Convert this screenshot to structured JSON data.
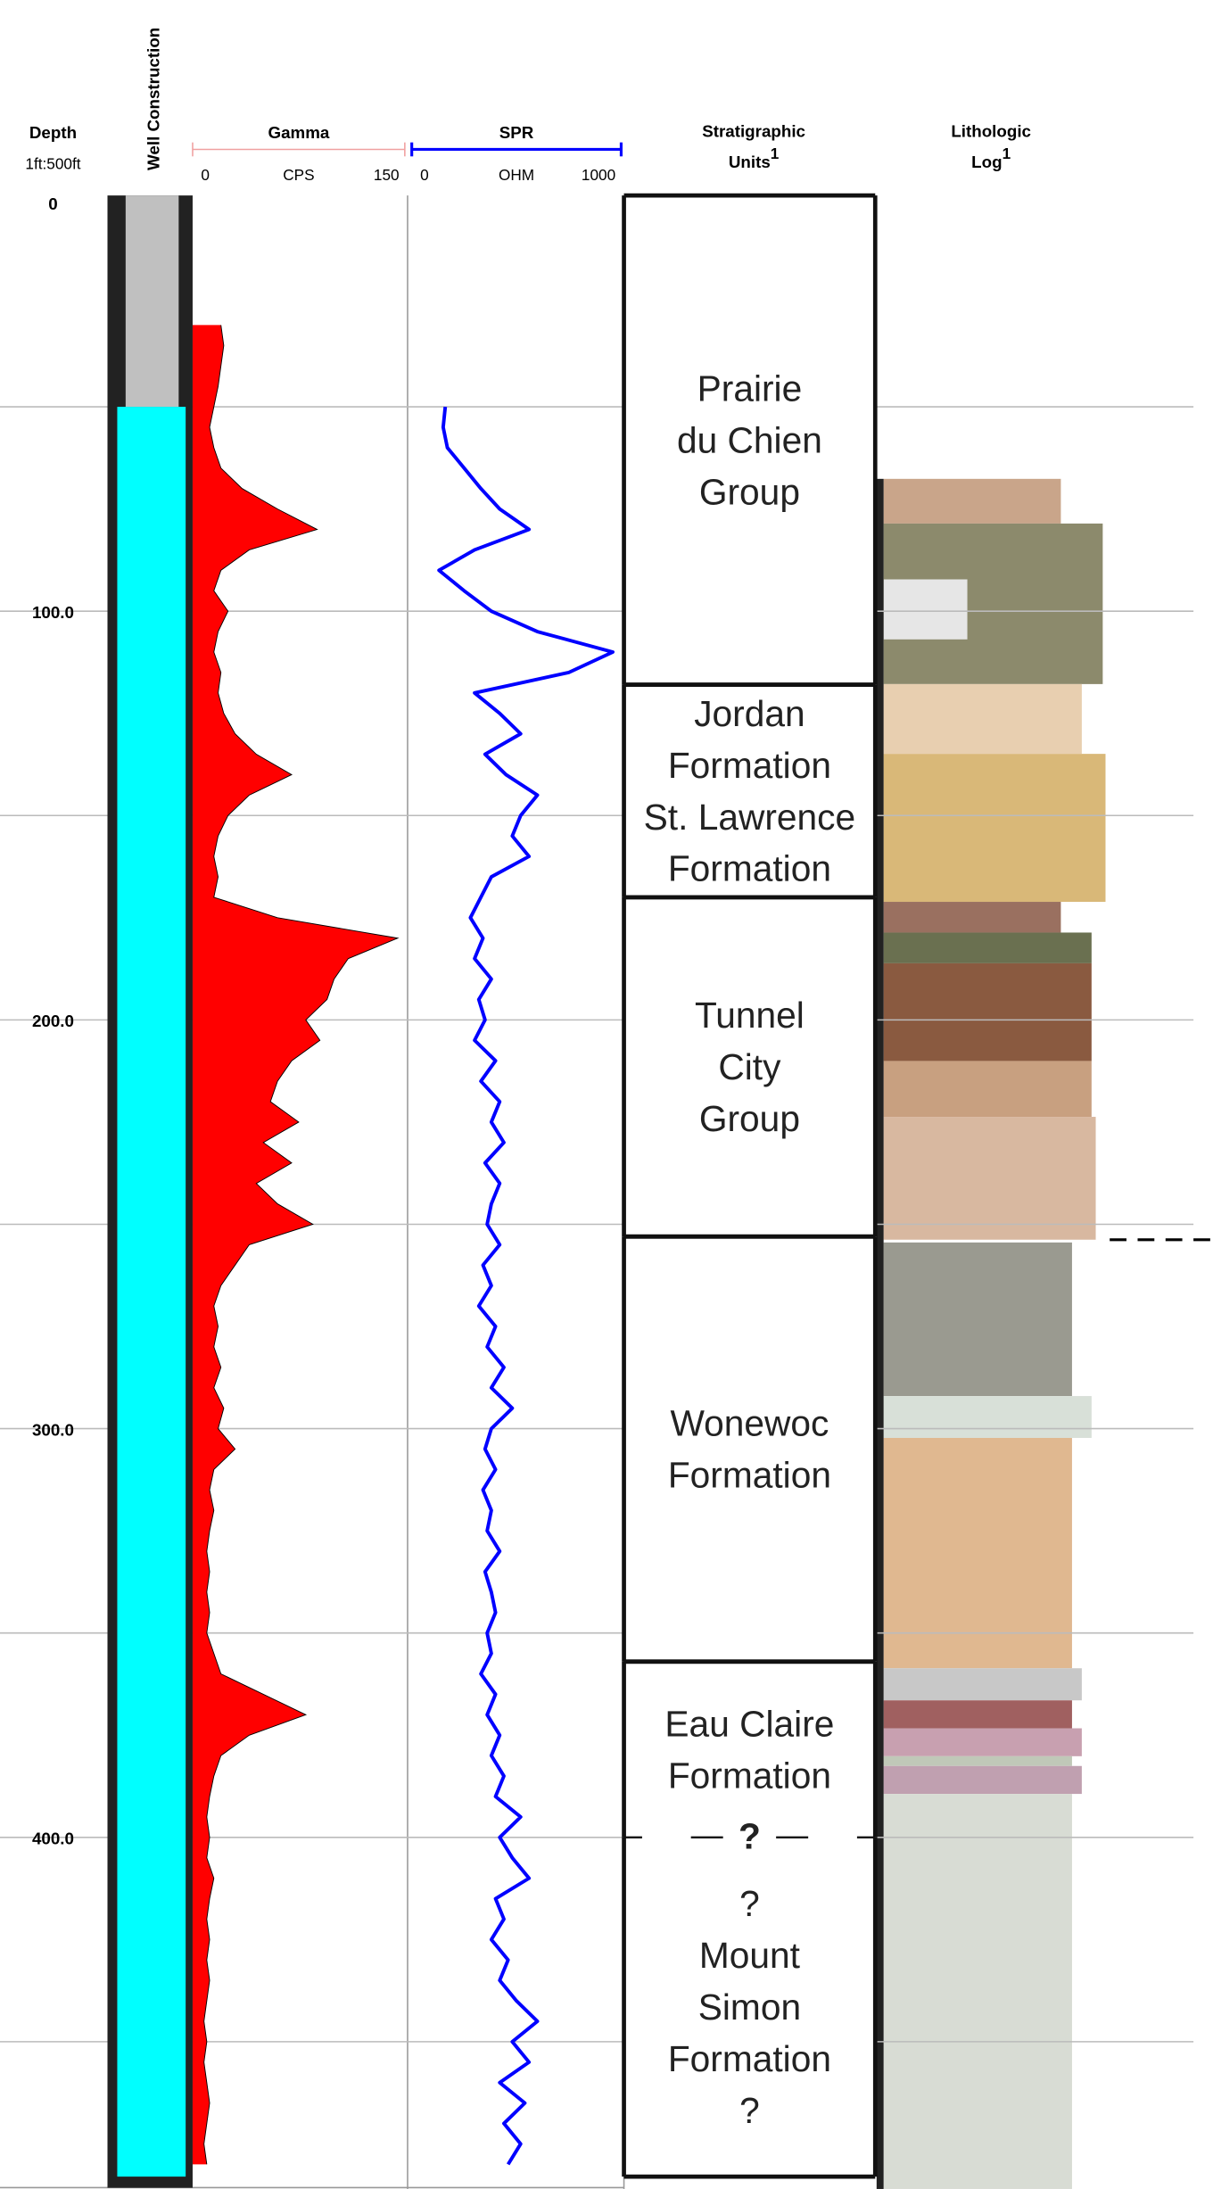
{
  "depth_track": {
    "title": "Depth",
    "scale": "1ft:500ft",
    "ylim": [
      0,
      485
    ],
    "yticks": [
      0,
      {
        "value": 100,
        "label": "100.0"
      },
      {
        "value": 200,
        "label": "200.0"
      },
      {
        "value": 300,
        "label": "300.0"
      },
      {
        "value": 400,
        "label": "400.0"
      }
    ],
    "minor_yticks": [
      50,
      150,
      250,
      350,
      450
    ],
    "grid": true
  },
  "well_construction": {
    "title": "Well Construction",
    "casing": [
      0,
      50
    ],
    "open_hole": [
      50,
      483
    ],
    "casing_color": "#c0c0c0",
    "open_hole_color": "#00ffff"
  },
  "chart_data": [
    {
      "type": "area",
      "title": "Gamma",
      "x_label": "CPS",
      "xlim": [
        0,
        150
      ],
      "xticks": [
        0,
        150
      ],
      "color": "#ff0000",
      "axis_color": "#f0a0a0",
      "y": [
        30,
        35,
        40,
        45,
        50,
        55,
        60,
        65,
        70,
        75,
        80,
        85,
        90,
        95,
        100,
        105,
        110,
        115,
        120,
        125,
        130,
        135,
        140,
        145,
        150,
        155,
        160,
        165,
        170,
        175,
        180,
        185,
        190,
        195,
        200,
        205,
        210,
        215,
        220,
        225,
        230,
        235,
        240,
        245,
        250,
        255,
        260,
        265,
        270,
        275,
        280,
        285,
        290,
        295,
        300,
        305,
        310,
        315,
        320,
        325,
        330,
        335,
        340,
        345,
        350,
        355,
        360,
        365,
        370,
        375,
        380,
        385,
        390,
        395,
        400,
        405,
        410,
        415,
        420,
        425,
        430,
        435,
        440,
        445,
        450,
        455,
        460,
        465,
        470,
        475,
        480
      ],
      "values": [
        20,
        22,
        20,
        18,
        15,
        12,
        15,
        20,
        35,
        60,
        88,
        40,
        20,
        15,
        25,
        18,
        15,
        20,
        18,
        22,
        30,
        45,
        70,
        40,
        25,
        18,
        15,
        18,
        15,
        60,
        145,
        110,
        100,
        95,
        80,
        90,
        70,
        60,
        55,
        75,
        50,
        70,
        45,
        60,
        85,
        40,
        30,
        20,
        15,
        18,
        15,
        20,
        15,
        22,
        18,
        30,
        15,
        12,
        15,
        12,
        10,
        12,
        10,
        12,
        10,
        15,
        20,
        50,
        80,
        40,
        20,
        15,
        12,
        10,
        12,
        10,
        15,
        12,
        10,
        12,
        10,
        12,
        10,
        8,
        10,
        8,
        10,
        12,
        10,
        8,
        10
      ]
    },
    {
      "type": "line",
      "title": "SPR",
      "x_label": "OHM",
      "xlim": [
        0,
        1000
      ],
      "xticks": [
        0,
        1000
      ],
      "color": "#0000ff",
      "axis_color": "#0000ff",
      "y": [
        50,
        55,
        60,
        65,
        70,
        75,
        80,
        85,
        90,
        95,
        100,
        105,
        110,
        115,
        120,
        125,
        130,
        135,
        140,
        145,
        150,
        155,
        160,
        165,
        170,
        175,
        180,
        185,
        190,
        195,
        200,
        205,
        210,
        215,
        220,
        225,
        230,
        235,
        240,
        245,
        250,
        255,
        260,
        265,
        270,
        275,
        280,
        285,
        290,
        295,
        300,
        305,
        310,
        315,
        320,
        325,
        330,
        335,
        340,
        345,
        350,
        355,
        360,
        365,
        370,
        375,
        380,
        385,
        390,
        395,
        400,
        405,
        410,
        415,
        420,
        425,
        430,
        435,
        440,
        445,
        450,
        455,
        460,
        465,
        470,
        475,
        480
      ],
      "values": [
        160,
        150,
        170,
        250,
        330,
        420,
        560,
        300,
        130,
        250,
        380,
        600,
        960,
        750,
        300,
        420,
        520,
        350,
        450,
        600,
        520,
        480,
        560,
        380,
        330,
        280,
        340,
        300,
        380,
        320,
        350,
        300,
        400,
        330,
        420,
        380,
        440,
        350,
        420,
        380,
        360,
        420,
        340,
        380,
        320,
        400,
        360,
        440,
        380,
        480,
        380,
        350,
        400,
        340,
        380,
        360,
        420,
        350,
        380,
        400,
        360,
        380,
        330,
        400,
        360,
        420,
        380,
        440,
        400,
        520,
        420,
        480,
        560,
        400,
        440,
        380,
        460,
        420,
        500,
        600,
        480,
        560,
        420,
        540,
        440,
        520,
        460
      ]
    }
  ],
  "stratigraphic_units": {
    "title": [
      "Stratigraphic",
      "Units"
    ],
    "note_mark": "1",
    "units": [
      {
        "label": [
          "Prairie",
          "du Chien",
          "Group"
        ],
        "top": 0,
        "bottom": 118
      },
      {
        "label": [
          "Jordan",
          "Formation",
          "St. Lawrence",
          "Formation"
        ],
        "top": 118,
        "bottom": 170
      },
      {
        "label": [
          "Tunnel",
          "City",
          "Group"
        ],
        "top": 170,
        "bottom": 253
      },
      {
        "label": [
          "Wonewoc",
          "Formation"
        ],
        "top": 253,
        "bottom": 357
      },
      {
        "label": [
          "Eau Claire",
          "Formation"
        ],
        "top": 357,
        "bottom": 400
      },
      {
        "label": [
          "?",
          "Mount",
          "Simon",
          "Formation",
          "?"
        ],
        "top": 400,
        "bottom": 483
      }
    ],
    "uncertain_boundary": {
      "depth": 400,
      "label": "?"
    }
  },
  "lithologic_log": {
    "title": [
      "Lithologic",
      "Log"
    ],
    "note_mark": "1"
  }
}
